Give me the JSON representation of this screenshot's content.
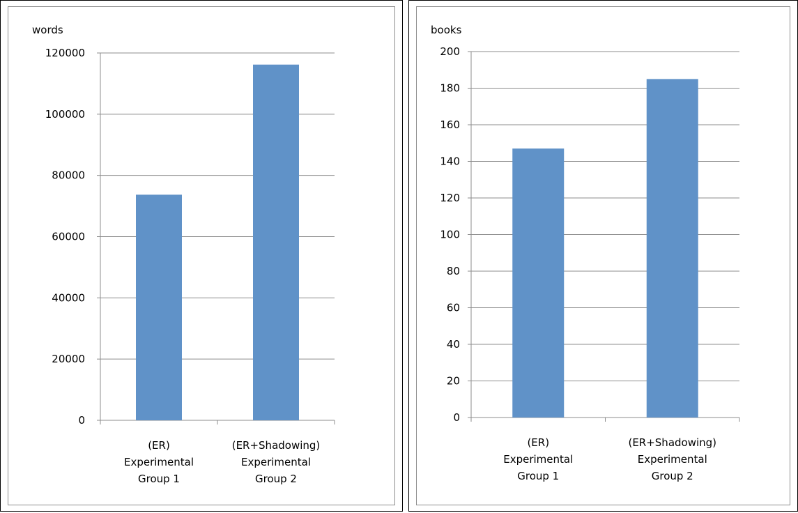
{
  "chart_data": [
    {
      "type": "bar",
      "ylabel": "words",
      "categories": [
        [
          "(ER)",
          "Experimental",
          "Group 1"
        ],
        [
          "(ER+Shadowing)",
          "Experimental",
          "Group 2"
        ]
      ],
      "values": [
        73700,
        116200
      ],
      "ylim": [
        0,
        120000
      ],
      "ytick_step": 20000,
      "yticks": [
        "0",
        "20000",
        "40000",
        "60000",
        "80000",
        "100000",
        "120000"
      ],
      "grid": true,
      "legend": "none",
      "bar_color": "#6092c8"
    },
    {
      "type": "bar",
      "ylabel": "books",
      "categories": [
        [
          "(ER)",
          "Experimental",
          "Group 1"
        ],
        [
          "(ER+Shadowing)",
          "Experimental",
          "Group 2"
        ]
      ],
      "values": [
        147,
        185
      ],
      "ylim": [
        0,
        200
      ],
      "ytick_step": 20,
      "yticks": [
        "0",
        "20",
        "40",
        "60",
        "80",
        "100",
        "120",
        "140",
        "160",
        "180",
        "200"
      ],
      "grid": true,
      "legend": "none",
      "bar_color": "#6092c8"
    }
  ]
}
